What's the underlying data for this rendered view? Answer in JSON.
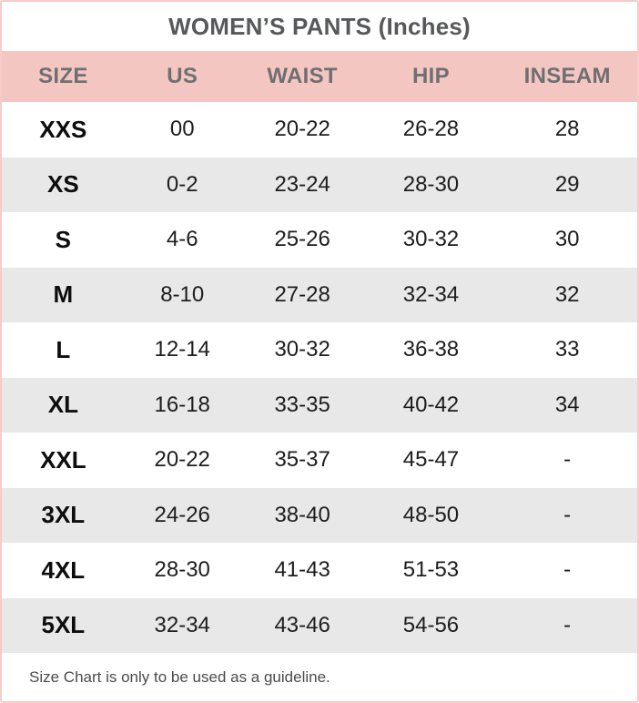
{
  "title": "WOMEN’S PANTS (Inches)",
  "chart_data": {
    "type": "table",
    "title": "WOMEN’S PANTS (Inches)",
    "headers": [
      "SIZE",
      "US",
      "WAIST",
      "HIP",
      "INSEAM"
    ],
    "rows": [
      [
        "XXS",
        "00",
        "20-22",
        "26-28",
        "28"
      ],
      [
        "XS",
        "0-2",
        "23-24",
        "28-30",
        "29"
      ],
      [
        "S",
        "4-6",
        "25-26",
        "30-32",
        "30"
      ],
      [
        "M",
        "8-10",
        "27-28",
        "32-34",
        "32"
      ],
      [
        "L",
        "12-14",
        "30-32",
        "36-38",
        "33"
      ],
      [
        "XL",
        "16-18",
        "33-35",
        "40-42",
        "34"
      ],
      [
        "XXL",
        "20-22",
        "35-37",
        "45-47",
        "-"
      ],
      [
        "3XL",
        "24-26",
        "38-40",
        "48-50",
        "-"
      ],
      [
        "4XL",
        "28-30",
        "41-43",
        "51-53",
        "-"
      ],
      [
        "5XL",
        "32-34",
        "43-46",
        "54-56",
        "-"
      ]
    ],
    "footnote": "Size Chart is only to be used as a guideline.",
    "layout": {
      "striped_rows": "even rows shaded",
      "header_background": "#f4c6c2",
      "stripe_background": "#e8e8e8"
    }
  },
  "footer": {
    "note": "Size Chart is only to be used as a guideline."
  },
  "colors": {
    "border_pink": "#f8cbc8",
    "header_pink": "#f4c6c2",
    "stripe_gray": "#e8e8e8",
    "title_text": "#57585a",
    "header_text": "#6e6f71",
    "data_text": "#1d1d1d",
    "footer_text": "#4b4b4b"
  }
}
